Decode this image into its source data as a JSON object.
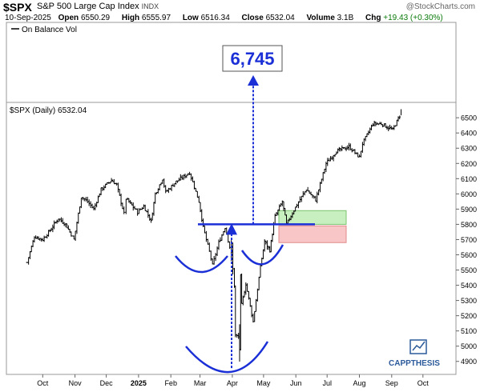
{
  "header": {
    "symbol": "$SPX",
    "name": "S&P 500 Large Cap Index",
    "exchange": "INDX",
    "copyright": "@StockCharts.com",
    "date": "10-Sep-2025",
    "open_label": "Open",
    "open": "6550.29",
    "high_label": "High",
    "high": "6555.97",
    "low_label": "Low",
    "low": "6516.34",
    "close_label": "Close",
    "close": "6532.04",
    "volume_label": "Volume",
    "volume": "3.1B",
    "chg_label": "Chg",
    "chg": "+19.43 (+0.30%)"
  },
  "obv_panel": {
    "legend": "On Balance Vol"
  },
  "price_panel": {
    "legend": "$SPX (Daily) 6532.04",
    "target_label": "6,745",
    "watermark": "CAPPTHESIS"
  },
  "chart_data": {
    "type": "ohlc-bar",
    "title": "$SPX (Daily) 6532.04",
    "yaxis": {
      "range": [
        4750,
        6600
      ],
      "ticks": [
        4900,
        5000,
        5100,
        5200,
        5300,
        5400,
        5500,
        5600,
        5700,
        5800,
        5900,
        6000,
        6100,
        6200,
        6300,
        6400,
        6500
      ]
    },
    "xaxis": {
      "ticks": [
        "Oct",
        "Nov",
        "Dec",
        "2025",
        "Feb",
        "Mar",
        "Apr",
        "May",
        "Jun",
        "Jul",
        "Aug",
        "Sep",
        "Oct"
      ]
    },
    "series": [
      {
        "name": "$SPX",
        "x": [
          "2024-09-16",
          "2024-09-23",
          "2024-10-01",
          "2024-10-08",
          "2024-10-16",
          "2024-10-23",
          "2024-10-31",
          "2024-11-07",
          "2024-11-13",
          "2024-11-19",
          "2024-11-26",
          "2024-12-06",
          "2024-12-11",
          "2024-12-18",
          "2024-12-20",
          "2024-12-31",
          "2025-01-06",
          "2025-01-13",
          "2025-01-17",
          "2025-01-24",
          "2025-01-27",
          "2025-02-06",
          "2025-02-19",
          "2025-02-28",
          "2025-03-04",
          "2025-03-10",
          "2025-03-13",
          "2025-03-19",
          "2025-03-25",
          "2025-03-31",
          "2025-04-03",
          "2025-04-04",
          "2025-04-07",
          "2025-04-08",
          "2025-04-09",
          "2025-04-10",
          "2025-04-14",
          "2025-04-21",
          "2025-04-28",
          "2025-05-02",
          "2025-05-07",
          "2025-05-12",
          "2025-05-19",
          "2025-05-23",
          "2025-06-02",
          "2025-06-11",
          "2025-06-20",
          "2025-06-30",
          "2025-07-10",
          "2025-07-22",
          "2025-08-01",
          "2025-08-04",
          "2025-08-14",
          "2025-08-22",
          "2025-09-02",
          "2025-09-10"
        ],
        "close": [
          5550,
          5720,
          5700,
          5760,
          5840,
          5800,
          5700,
          5980,
          5950,
          5900,
          6030,
          6090,
          6060,
          5870,
          5970,
          5880,
          5920,
          5820,
          6000,
          6100,
          6010,
          6080,
          6140,
          5950,
          5780,
          5620,
          5530,
          5680,
          5780,
          5610,
          5400,
          5070,
          5060,
          4980,
          5460,
          5270,
          5410,
          5160,
          5520,
          5690,
          5630,
          5850,
          5950,
          5800,
          5930,
          6030,
          5960,
          6200,
          6280,
          6310,
          6240,
          6330,
          6460,
          6460,
          6420,
          6532
        ]
      }
    ],
    "annotations": [
      {
        "text": "6,745",
        "kind": "price-target",
        "value": 6745
      },
      {
        "kind": "neckline",
        "value": 5800
      },
      {
        "kind": "target-zone-green",
        "range": [
          5800,
          5890
        ]
      },
      {
        "kind": "stop-zone-red",
        "range": [
          5680,
          5790
        ]
      },
      {
        "kind": "inverse-head-and-shoulders",
        "head_low": 4835
      }
    ],
    "grid": false,
    "legend": "top-left"
  }
}
